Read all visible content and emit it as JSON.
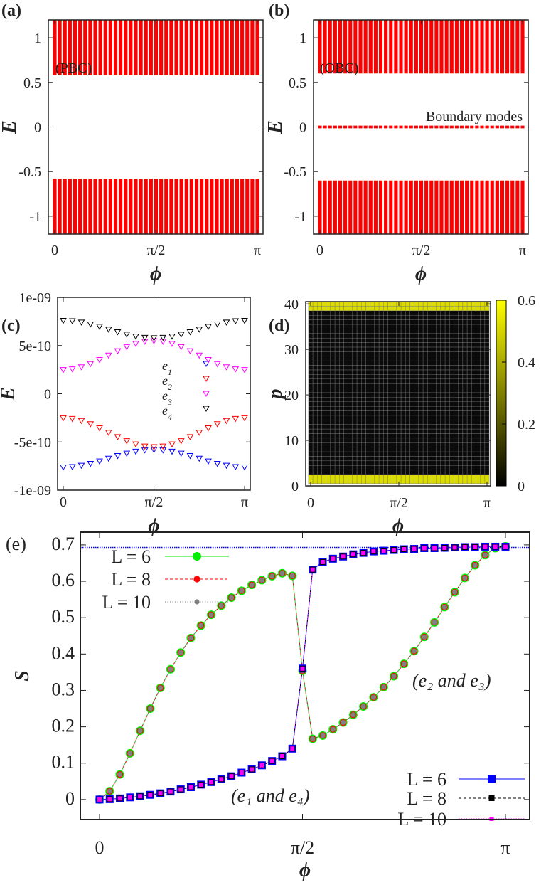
{
  "chart_data": [
    {
      "panel_label": "(a)",
      "type": "bar",
      "xlabel": "ϕ",
      "ylabel": "E",
      "xticks": [
        "0",
        "π/2",
        "π"
      ],
      "yticks": [
        {
          "v": 1,
          "t": "1"
        },
        {
          "v": 0.5,
          "t": "0.5"
        },
        {
          "v": 0,
          "t": "0"
        },
        {
          "v": -0.5,
          "t": "-0.5"
        },
        {
          "v": -1,
          "t": "-1"
        }
      ],
      "xlim": [
        0,
        3.14159
      ],
      "ylim": [
        -1.2,
        1.2
      ],
      "phi_count": 41,
      "bands": [
        {
          "min": 0.58,
          "max": 1.2
        },
        {
          "min": -1.2,
          "max": -0.58
        }
      ],
      "annotation": "(PBC)",
      "color": "#ff0000"
    },
    {
      "panel_label": "(b)",
      "type": "bar",
      "xlabel": "ϕ",
      "ylabel": "E",
      "xticks": [
        "0",
        "π/2",
        "π"
      ],
      "yticks": [
        {
          "v": 1,
          "t": "1"
        },
        {
          "v": 0.5,
          "t": "0.5"
        },
        {
          "v": 0,
          "t": "0"
        },
        {
          "v": -0.5,
          "t": "-0.5"
        },
        {
          "v": -1,
          "t": "-1"
        }
      ],
      "xlim": [
        0,
        3.14159
      ],
      "ylim": [
        -1.2,
        1.2
      ],
      "phi_count": 41,
      "bands": [
        {
          "min": 0.6,
          "max": 1.2
        },
        {
          "min": -0.015,
          "max": 0.015
        },
        {
          "min": -1.2,
          "max": -0.6
        }
      ],
      "annotation": "(OBC)",
      "annotation2": "Boundary modes",
      "color": "#ff0000"
    },
    {
      "panel_label": "(c)",
      "type": "scatter",
      "xlabel": "ϕ",
      "ylabel": "E",
      "xticks": [
        "0",
        "π/2",
        "π"
      ],
      "yticks": [
        {
          "v": 1e-09,
          "t": "1e-09"
        },
        {
          "v": 5e-10,
          "t": "5e-10"
        },
        {
          "v": 0,
          "t": "0"
        },
        {
          "v": -5e-10,
          "t": "-5e-10"
        },
        {
          "v": -1e-09,
          "t": "-1e-09"
        }
      ],
      "xlim": [
        0,
        3.14159
      ],
      "ylim": [
        -1e-09,
        1e-09
      ],
      "marker": "triangle-down",
      "x_fraction_of_pi": [
        0,
        0.05,
        0.1,
        0.15,
        0.2,
        0.25,
        0.3,
        0.35,
        0.4,
        0.45,
        0.5,
        0.55,
        0.6,
        0.65,
        0.7,
        0.75,
        0.8,
        0.85,
        0.9,
        0.95,
        1
      ],
      "series": [
        {
          "name": "e",
          "sub": "1",
          "color": "#0000ff",
          "values": [
            -7.6e-10,
            -7.56e-10,
            -7.43e-10,
            -7.23e-10,
            -6.98e-10,
            -6.7e-10,
            -6.42e-10,
            -6.17e-10,
            -5.97e-10,
            -5.84e-10,
            -5.8e-10,
            -5.84e-10,
            -5.97e-10,
            -6.17e-10,
            -6.42e-10,
            -6.7e-10,
            -6.98e-10,
            -7.23e-10,
            -7.43e-10,
            -7.56e-10,
            -7.6e-10
          ]
        },
        {
          "name": "e",
          "sub": "2",
          "color": "#ff0000",
          "values": [
            -2.5e-10,
            -2.57e-10,
            -2.79e-10,
            -3.12e-10,
            -3.54e-10,
            -4e-10,
            -4.46e-10,
            -4.88e-10,
            -5.21e-10,
            -5.43e-10,
            -5.5e-10,
            -5.43e-10,
            -5.21e-10,
            -4.88e-10,
            -4.46e-10,
            -4e-10,
            -3.54e-10,
            -3.12e-10,
            -2.79e-10,
            -2.57e-10,
            -2.5e-10
          ]
        },
        {
          "name": "e",
          "sub": "3",
          "color": "#ff00ff",
          "values": [
            2.5e-10,
            2.57e-10,
            2.79e-10,
            3.12e-10,
            3.54e-10,
            4e-10,
            4.46e-10,
            4.88e-10,
            5.21e-10,
            5.43e-10,
            5.5e-10,
            5.43e-10,
            5.21e-10,
            4.88e-10,
            4.46e-10,
            4e-10,
            3.54e-10,
            3.12e-10,
            2.79e-10,
            2.57e-10,
            2.5e-10
          ]
        },
        {
          "name": "e",
          "sub": "4",
          "color": "#000000",
          "values": [
            7.6e-10,
            7.56e-10,
            7.43e-10,
            7.23e-10,
            6.98e-10,
            6.7e-10,
            6.42e-10,
            6.17e-10,
            5.97e-10,
            5.84e-10,
            5.8e-10,
            5.84e-10,
            5.97e-10,
            6.17e-10,
            6.42e-10,
            6.7e-10,
            6.98e-10,
            7.23e-10,
            7.43e-10,
            7.56e-10,
            7.6e-10
          ]
        }
      ],
      "legend_position": "center-right"
    },
    {
      "panel_label": "(d)",
      "type": "heatmap",
      "xlabel": "ϕ",
      "ylabel": "p",
      "xticks": [
        "0",
        "π/2",
        "π"
      ],
      "yticks": [
        {
          "v": 40,
          "t": "40"
        },
        {
          "v": 30,
          "t": "30"
        },
        {
          "v": 20,
          "t": "20"
        },
        {
          "v": 10,
          "t": "10"
        },
        {
          "v": 0,
          "t": "0"
        }
      ],
      "xlim": [
        0,
        3.14159
      ],
      "ylim": [
        0,
        40.5
      ],
      "phi_count": 41,
      "p_range": [
        1,
        40
      ],
      "high_rows": [
        1,
        2,
        39,
        40
      ],
      "high_value": 0.55,
      "low_value": 0.0,
      "colorbar": {
        "min": 0,
        "max": 0.6,
        "ticks": [
          {
            "v": 0.6,
            "t": "0.6"
          },
          {
            "v": 0.4,
            "t": "0.4"
          },
          {
            "v": 0.2,
            "t": "0.2"
          },
          {
            "v": 0,
            "t": "0"
          }
        ],
        "low_color": "#000000",
        "high_color": "#ffff00"
      },
      "grid": true
    },
    {
      "panel_label": "(e)",
      "type": "line",
      "xlabel": "ϕ",
      "ylabel": "S",
      "xticks": [
        "0",
        "π/2",
        "π"
      ],
      "yticks": [
        {
          "v": 0.7,
          "t": "0.7"
        },
        {
          "v": 0.6,
          "t": "0.6"
        },
        {
          "v": 0.5,
          "t": "0.5"
        },
        {
          "v": 0.4,
          "t": "0.4"
        },
        {
          "v": 0.3,
          "t": "0.3"
        },
        {
          "v": 0.2,
          "t": "0.2"
        },
        {
          "v": 0.1,
          "t": "0.1"
        },
        {
          "v": 0,
          "t": "0"
        }
      ],
      "xlim": [
        0,
        3.14159
      ],
      "ylim": [
        -0.055,
        0.735
      ],
      "x_step_fraction_of_pi": 0.025,
      "reference_line": {
        "y": 0.693,
        "color": "#0000ff"
      },
      "curves": {
        "e2_e3": [
          0,
          0.023,
          0.069,
          0.127,
          0.189,
          0.25,
          0.307,
          0.358,
          0.404,
          0.444,
          0.478,
          0.508,
          0.533,
          0.555,
          0.574,
          0.59,
          0.603,
          0.614,
          0.622,
          0.615,
          0.354,
          0.167,
          0.176,
          0.193,
          0.212,
          0.233,
          0.256,
          0.281,
          0.309,
          0.339,
          0.373,
          0.408,
          0.447,
          0.487,
          0.529,
          0.57,
          0.609,
          0.644,
          0.672,
          0.691,
          0.696
        ],
        "e1_e4": [
          0,
          0.001,
          0.003,
          0.006,
          0.009,
          0.013,
          0.017,
          0.022,
          0.028,
          0.034,
          0.041,
          0.048,
          0.056,
          0.064,
          0.074,
          0.083,
          0.094,
          0.106,
          0.119,
          0.14,
          0.36,
          0.632,
          0.653,
          0.662,
          0.668,
          0.674,
          0.678,
          0.682,
          0.684,
          0.686,
          0.688,
          0.689,
          0.691,
          0.691,
          0.692,
          0.693,
          0.694,
          0.694,
          0.695,
          0.695,
          0.695
        ]
      },
      "series": [
        {
          "name": "L = 6",
          "curve": "e2_e3",
          "marker": "circle",
          "color": "#00ee00",
          "line": "solid"
        },
        {
          "name": "L = 8",
          "curve": "e2_e3",
          "marker": "circle",
          "color": "#ff0000",
          "line": "dashed"
        },
        {
          "name": "L = 10",
          "curve": "e2_e3",
          "marker": "circle",
          "color": "#808080",
          "line": "dotted"
        },
        {
          "name": "L = 6",
          "curve": "e1_e4",
          "marker": "square",
          "color": "#0000ff",
          "line": "solid"
        },
        {
          "name": "L = 8",
          "curve": "e1_e4",
          "marker": "square",
          "color": "#000000",
          "line": "dashed"
        },
        {
          "name": "L = 10",
          "curve": "e1_e4",
          "marker": "square",
          "color": "#ff00ff",
          "line": "dotted"
        }
      ],
      "annotations": [
        "(e₁ and e₄)",
        "(e₂ and e₃)"
      ],
      "legend_positions": [
        "top-left",
        "bottom-right"
      ]
    }
  ]
}
